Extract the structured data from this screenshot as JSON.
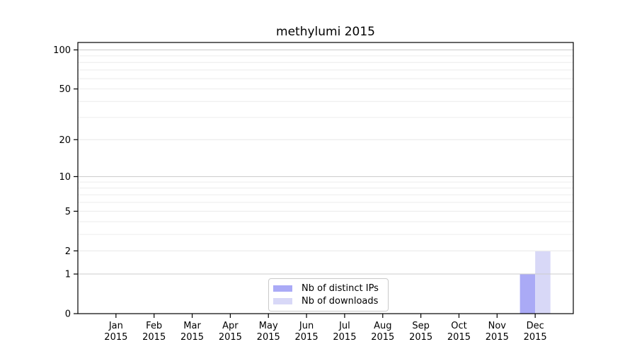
{
  "chart_data": {
    "type": "bar",
    "title": "methylumi 2015",
    "categories": [
      "Jan",
      "Feb",
      "Mar",
      "Apr",
      "May",
      "Jun",
      "Jul",
      "Aug",
      "Sep",
      "Oct",
      "Nov",
      "Dec"
    ],
    "year_label": "2015",
    "series": [
      {
        "name": "Nb of distinct IPs",
        "color": "#aaaaf6",
        "values": [
          0,
          0,
          0,
          0,
          0,
          0,
          0,
          0,
          0,
          0,
          0,
          1
        ]
      },
      {
        "name": "Nb of downloads",
        "color": "#d8d8f7",
        "values": [
          0,
          0,
          0,
          0,
          0,
          0,
          0,
          0,
          0,
          0,
          0,
          2
        ]
      }
    ],
    "xlabel": "",
    "ylabel": "",
    "y_ticks": [
      0,
      1,
      2,
      5,
      10,
      20,
      50,
      100
    ],
    "ylim": [
      0,
      114
    ],
    "y_scale": "log10(1+x)",
    "grid": {
      "on": true,
      "major_values": [
        1,
        10,
        100
      ],
      "minor_values": [
        2,
        3,
        4,
        6,
        7,
        8,
        9,
        20,
        30,
        40,
        60,
        70,
        80,
        90
      ],
      "minor_labeled_values": [
        2,
        5,
        20,
        50
      ],
      "major_color": "#cccccc",
      "minor_color": "#ececec"
    },
    "legend": {
      "position": "bottom-center-inside"
    },
    "colors": {
      "axis": "#000000",
      "text": "#000000",
      "background": "#ffffff"
    }
  }
}
